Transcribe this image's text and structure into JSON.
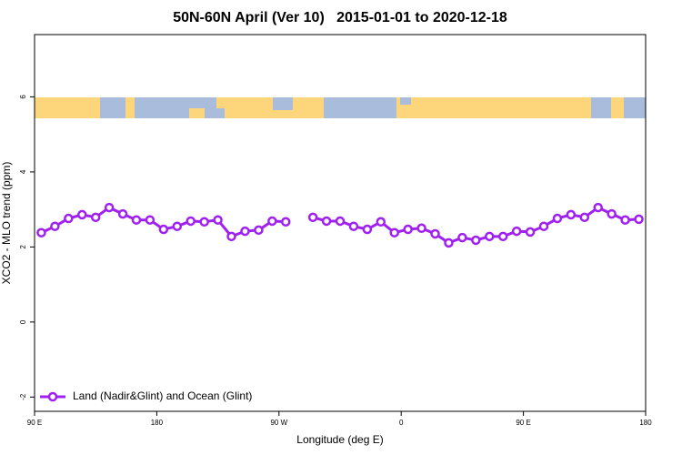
{
  "chart_data": {
    "type": "line",
    "title": "50N-60N April (Ver 10)   2015-01-01 to 2020-12-18",
    "xlabel": "Longitude (deg E)",
    "ylabel": "XCO2 - MLO trend (ppm)",
    "xlim": [
      90,
      540
    ],
    "xticks": [
      {
        "value": 90,
        "label": "90 E"
      },
      {
        "value": 180,
        "label": "180"
      },
      {
        "value": 270,
        "label": "90 W"
      },
      {
        "value": 360,
        "label": "0"
      },
      {
        "value": 450,
        "label": "90 E"
      },
      {
        "value": 540,
        "label": "180"
      }
    ],
    "ylim": [
      -2.38,
      7.66
    ],
    "yticks": [
      -2,
      0,
      2,
      4,
      6
    ],
    "legend": "bottom-left",
    "x": [
      95,
      105,
      115,
      125,
      135,
      145,
      155,
      165,
      175,
      185,
      195,
      205,
      215,
      225,
      235,
      245,
      255,
      265,
      275,
      285,
      295,
      305,
      315,
      325,
      335,
      345,
      355,
      365,
      375,
      385,
      395,
      405,
      415,
      425,
      435,
      445,
      455,
      465,
      475,
      485,
      495,
      505,
      515,
      525,
      535
    ],
    "series": [
      {
        "name": "Land (Nadir&Glint) and Ocean (Glint)",
        "color": "#a020f0",
        "values": [
          2.38,
          2.55,
          2.76,
          2.86,
          2.79,
          3.05,
          2.88,
          2.72,
          2.72,
          2.47,
          2.55,
          2.69,
          2.67,
          2.72,
          2.28,
          2.42,
          2.45,
          2.69,
          2.67,
          null,
          2.79,
          2.69,
          2.69,
          2.55,
          2.47,
          2.67,
          2.38,
          2.47,
          2.5,
          2.35,
          2.11,
          2.25,
          2.18,
          2.28,
          2.28,
          2.42,
          2.4,
          2.55,
          2.76,
          2.86,
          2.79,
          3.05,
          2.88,
          2.72,
          2.74
        ]
      }
    ]
  }
}
